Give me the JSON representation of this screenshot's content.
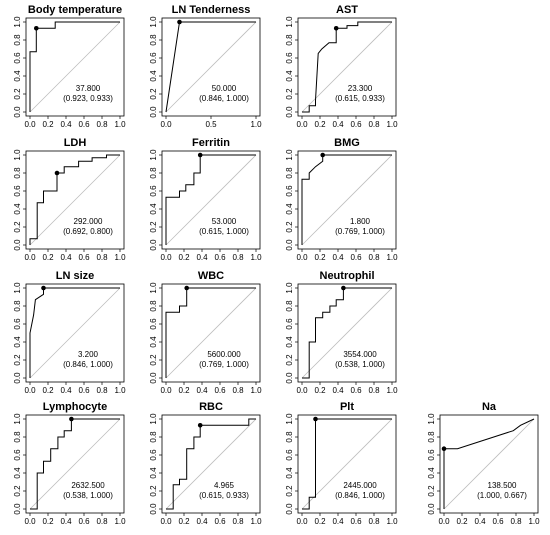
{
  "chart_data": [
    {
      "type": "line",
      "title": "Body temperature",
      "x_ticks": [
        "0.0",
        "0.2",
        "0.4",
        "0.6",
        "0.8",
        "1.0"
      ],
      "y_ticks": [
        "0.0",
        "0.2",
        "0.4",
        "0.6",
        "0.8",
        "1.0"
      ],
      "xlim": [
        0,
        1
      ],
      "ylim": [
        0,
        1
      ],
      "x_tick_values": [
        0,
        0.2,
        0.4,
        0.6,
        0.8,
        1
      ],
      "y_tick_values": [
        0,
        0.2,
        0.4,
        0.6,
        0.8,
        1
      ],
      "x": [
        0,
        0,
        0.07,
        0.07,
        0.28,
        0.28,
        1
      ],
      "y": [
        0,
        0.67,
        0.67,
        0.93,
        0.93,
        1,
        1
      ],
      "point": [
        0.07,
        0.93
      ],
      "threshold": "37.800",
      "ci": "(0.923, 0.933)"
    },
    {
      "type": "line",
      "title": "LN Tenderness",
      "x_ticks": [
        "0.0",
        "0.5",
        "1.0"
      ],
      "y_ticks": [
        "0.0",
        "0.2",
        "0.4",
        "0.6",
        "0.8",
        "1.0"
      ],
      "xlim": [
        0,
        1
      ],
      "ylim": [
        0,
        1
      ],
      "x_tick_values": [
        0,
        0.5,
        1
      ],
      "y_tick_values": [
        0,
        0.2,
        0.4,
        0.6,
        0.8,
        1
      ],
      "x": [
        0,
        0.15,
        1
      ],
      "y": [
        0,
        1,
        1
      ],
      "point": [
        0.15,
        1
      ],
      "threshold": "50.000",
      "ci": "(0.846, 1.000)"
    },
    {
      "type": "line",
      "title": "AST",
      "x_ticks": [
        "0.0",
        "0.2",
        "0.4",
        "0.6",
        "0.8",
        "1.0"
      ],
      "y_ticks": [
        "0.0",
        "0.2",
        "0.4",
        "0.6",
        "0.8",
        "1.0"
      ],
      "xlim": [
        0,
        1
      ],
      "ylim": [
        0,
        1
      ],
      "x_tick_values": [
        0,
        0.2,
        0.4,
        0.6,
        0.8,
        1
      ],
      "y_tick_values": [
        0,
        0.2,
        0.4,
        0.6,
        0.8,
        1
      ],
      "x": [
        0,
        0.08,
        0.08,
        0.15,
        0.15,
        0.18,
        0.22,
        0.3,
        0.38,
        0.38,
        0.5,
        0.5,
        0.62,
        0.62,
        1
      ],
      "y": [
        0,
        0,
        0.07,
        0.07,
        0.13,
        0.65,
        0.7,
        0.77,
        0.77,
        0.93,
        0.93,
        0.96,
        0.96,
        1,
        1
      ],
      "point": [
        0.38,
        0.93
      ],
      "threshold": "23.300",
      "ci": "(0.615, 0.933)"
    },
    {
      "type": "line",
      "title": "LDH",
      "x_ticks": [
        "0.0",
        "0.2",
        "0.4",
        "0.6",
        "0.8",
        "1.0"
      ],
      "y_ticks": [
        "0.0",
        "0.2",
        "0.4",
        "0.6",
        "0.8",
        "1.0"
      ],
      "xlim": [
        0,
        1
      ],
      "ylim": [
        0,
        1
      ],
      "x_tick_values": [
        0,
        0.2,
        0.4,
        0.6,
        0.8,
        1
      ],
      "y_tick_values": [
        0,
        0.2,
        0.4,
        0.6,
        0.8,
        1
      ],
      "x": [
        0,
        0,
        0.08,
        0.08,
        0.15,
        0.15,
        0.3,
        0.3,
        0.38,
        0.38,
        0.54,
        0.54,
        0.69,
        0.69,
        0.85,
        0.85,
        1
      ],
      "y": [
        0,
        0.07,
        0.07,
        0.47,
        0.47,
        0.6,
        0.6,
        0.8,
        0.8,
        0.87,
        0.87,
        0.93,
        0.93,
        0.97,
        0.97,
        1,
        1
      ],
      "point": [
        0.3,
        0.8
      ],
      "threshold": "292.000",
      "ci": "(0.692, 0.800)"
    },
    {
      "type": "line",
      "title": "Ferritin",
      "x_ticks": [
        "0.0",
        "0.2",
        "0.4",
        "0.6",
        "0.8",
        "1.0"
      ],
      "y_ticks": [
        "0.0",
        "0.2",
        "0.4",
        "0.6",
        "0.8",
        "1.0"
      ],
      "xlim": [
        0,
        1
      ],
      "ylim": [
        0,
        1
      ],
      "x_tick_values": [
        0,
        0.2,
        0.4,
        0.6,
        0.8,
        1
      ],
      "y_tick_values": [
        0,
        0.2,
        0.4,
        0.6,
        0.8,
        1
      ],
      "x": [
        0,
        0,
        0.15,
        0.15,
        0.22,
        0.22,
        0.31,
        0.31,
        0.38,
        0.38,
        1
      ],
      "y": [
        0,
        0.53,
        0.53,
        0.6,
        0.6,
        0.67,
        0.67,
        0.8,
        0.8,
        1,
        1
      ],
      "point": [
        0.38,
        1
      ],
      "threshold": "53.000",
      "ci": "(0.615, 1.000)"
    },
    {
      "type": "line",
      "title": "BMG",
      "x_ticks": [
        "0.0",
        "0.2",
        "0.4",
        "0.6",
        "0.8",
        "1.0"
      ],
      "y_ticks": [
        "0.0",
        "0.2",
        "0.4",
        "0.6",
        "0.8",
        "1.0"
      ],
      "xlim": [
        0,
        1
      ],
      "ylim": [
        0,
        1
      ],
      "x_tick_values": [
        0,
        0.2,
        0.4,
        0.6,
        0.8,
        1
      ],
      "y_tick_values": [
        0,
        0.2,
        0.4,
        0.6,
        0.8,
        1
      ],
      "x": [
        0,
        0,
        0.08,
        0.08,
        0.15,
        0.23,
        0.23,
        1
      ],
      "y": [
        0,
        0.73,
        0.73,
        0.8,
        0.87,
        0.93,
        1,
        1
      ],
      "point": [
        0.23,
        1
      ],
      "threshold": "1.800",
      "ci": "(0.769, 1.000)"
    },
    {
      "type": "line",
      "title": "LN size",
      "x_ticks": [
        "0.0",
        "0.2",
        "0.4",
        "0.6",
        "0.8",
        "1.0"
      ],
      "y_ticks": [
        "0.0",
        "0.2",
        "0.4",
        "0.6",
        "0.8",
        "1.0"
      ],
      "xlim": [
        0,
        1
      ],
      "ylim": [
        0,
        1
      ],
      "x_tick_values": [
        0,
        0.2,
        0.4,
        0.6,
        0.8,
        1
      ],
      "y_tick_values": [
        0,
        0.2,
        0.4,
        0.6,
        0.8,
        1
      ],
      "x": [
        0,
        0,
        0.04,
        0.06,
        0.06,
        0.15,
        0.15,
        1
      ],
      "y": [
        0,
        0.5,
        0.7,
        0.87,
        0.87,
        0.93,
        1,
        1
      ],
      "point": [
        0.15,
        1
      ],
      "threshold": "3.200",
      "ci": "(0.846, 1.000)"
    },
    {
      "type": "line",
      "title": "WBC",
      "x_ticks": [
        "0.0",
        "0.2",
        "0.4",
        "0.6",
        "0.8",
        "1.0"
      ],
      "y_ticks": [
        "0.0",
        "0.2",
        "0.4",
        "0.6",
        "0.8",
        "1.0"
      ],
      "xlim": [
        0,
        1
      ],
      "ylim": [
        0,
        1
      ],
      "x_tick_values": [
        0,
        0.2,
        0.4,
        0.6,
        0.8,
        1
      ],
      "y_tick_values": [
        0,
        0.2,
        0.4,
        0.6,
        0.8,
        1
      ],
      "x": [
        0,
        0,
        0.15,
        0.15,
        0.23,
        0.23,
        1
      ],
      "y": [
        0,
        0.73,
        0.73,
        0.8,
        0.8,
        1,
        1
      ],
      "point": [
        0.23,
        1
      ],
      "threshold": "5600.000",
      "ci": "(0.769, 1.000)"
    },
    {
      "type": "line",
      "title": "Neutrophil",
      "x_ticks": [
        "0.0",
        "0.2",
        "0.4",
        "0.6",
        "0.8",
        "1.0"
      ],
      "y_ticks": [
        "0.0",
        "0.2",
        "0.4",
        "0.6",
        "0.8",
        "1.0"
      ],
      "xlim": [
        0,
        1
      ],
      "ylim": [
        0,
        1
      ],
      "x_tick_values": [
        0,
        0.2,
        0.4,
        0.6,
        0.8,
        1
      ],
      "y_tick_values": [
        0,
        0.2,
        0.4,
        0.6,
        0.8,
        1
      ],
      "x": [
        0,
        0.08,
        0.08,
        0.15,
        0.15,
        0.23,
        0.23,
        0.31,
        0.31,
        0.38,
        0.38,
        0.46,
        0.46,
        1
      ],
      "y": [
        0,
        0,
        0.4,
        0.4,
        0.67,
        0.67,
        0.73,
        0.73,
        0.8,
        0.8,
        0.87,
        0.87,
        1,
        1
      ],
      "point": [
        0.46,
        1
      ],
      "threshold": "3554.000",
      "ci": "(0.538, 1.000)"
    },
    {
      "type": "line",
      "title": "Lymphocyte",
      "x_ticks": [
        "0.0",
        "0.2",
        "0.4",
        "0.6",
        "0.8",
        "1.0"
      ],
      "y_ticks": [
        "0.0",
        "0.2",
        "0.4",
        "0.6",
        "0.8",
        "1.0"
      ],
      "xlim": [
        0,
        1
      ],
      "ylim": [
        0,
        1
      ],
      "x_tick_values": [
        0,
        0.2,
        0.4,
        0.6,
        0.8,
        1
      ],
      "y_tick_values": [
        0,
        0.2,
        0.4,
        0.6,
        0.8,
        1
      ],
      "x": [
        0,
        0.08,
        0.08,
        0.15,
        0.15,
        0.23,
        0.23,
        0.31,
        0.31,
        0.38,
        0.38,
        0.46,
        0.46,
        1
      ],
      "y": [
        0,
        0,
        0.4,
        0.4,
        0.53,
        0.53,
        0.67,
        0.67,
        0.8,
        0.8,
        0.87,
        0.87,
        1,
        1
      ],
      "point": [
        0.46,
        1
      ],
      "threshold": "2632.500",
      "ci": "(0.538, 1.000)"
    },
    {
      "type": "line",
      "title": "RBC",
      "x_ticks": [
        "0.0",
        "0.2",
        "0.4",
        "0.6",
        "0.8",
        "1.0"
      ],
      "y_ticks": [
        "0.0",
        "0.2",
        "0.4",
        "0.6",
        "0.8",
        "1.0"
      ],
      "xlim": [
        0,
        1
      ],
      "ylim": [
        0,
        1
      ],
      "x_tick_values": [
        0,
        0.2,
        0.4,
        0.6,
        0.8,
        1
      ],
      "y_tick_values": [
        0,
        0.2,
        0.4,
        0.6,
        0.8,
        1
      ],
      "x": [
        0,
        0.08,
        0.08,
        0.15,
        0.15,
        0.23,
        0.23,
        0.31,
        0.31,
        0.38,
        0.38,
        0.92,
        0.92,
        1
      ],
      "y": [
        0,
        0,
        0.27,
        0.27,
        0.33,
        0.33,
        0.67,
        0.67,
        0.8,
        0.8,
        0.93,
        0.93,
        1,
        1
      ],
      "point": [
        0.38,
        0.93
      ],
      "threshold": "4.965",
      "ci": "(0.615, 0.933)"
    },
    {
      "type": "line",
      "title": "Plt",
      "x_ticks": [
        "0.0",
        "0.2",
        "0.4",
        "0.6",
        "0.8",
        "1.0"
      ],
      "y_ticks": [
        "0.0",
        "0.2",
        "0.4",
        "0.6",
        "0.8",
        "1.0"
      ],
      "xlim": [
        0,
        1
      ],
      "ylim": [
        0,
        1
      ],
      "x_tick_values": [
        0,
        0.2,
        0.4,
        0.6,
        0.8,
        1
      ],
      "y_tick_values": [
        0,
        0.2,
        0.4,
        0.6,
        0.8,
        1
      ],
      "x": [
        0,
        0.08,
        0.08,
        0.15,
        0.15,
        1
      ],
      "y": [
        0,
        0,
        0.13,
        0.13,
        1,
        1
      ],
      "point": [
        0.15,
        1
      ],
      "threshold": "2445.000",
      "ci": "(0.846, 1.000)"
    },
    {
      "type": "line",
      "title": "Na",
      "x_ticks": [
        "0.0",
        "0.2",
        "0.4",
        "0.6",
        "0.8",
        "1.0"
      ],
      "y_ticks": [
        "0.0",
        "0.2",
        "0.4",
        "0.6",
        "0.8",
        "1.0"
      ],
      "xlim": [
        0,
        1
      ],
      "ylim": [
        0,
        1
      ],
      "x_tick_values": [
        0,
        0.2,
        0.4,
        0.6,
        0.8,
        1
      ],
      "y_tick_values": [
        0,
        0.2,
        0.4,
        0.6,
        0.8,
        1
      ],
      "x": [
        0,
        0,
        0.15,
        0.77,
        0.85,
        1
      ],
      "y": [
        0,
        0.67,
        0.67,
        0.87,
        0.93,
        1
      ],
      "point": [
        0,
        0.67
      ],
      "threshold": "138.500",
      "ci": "(1.000, 0.667)"
    }
  ]
}
